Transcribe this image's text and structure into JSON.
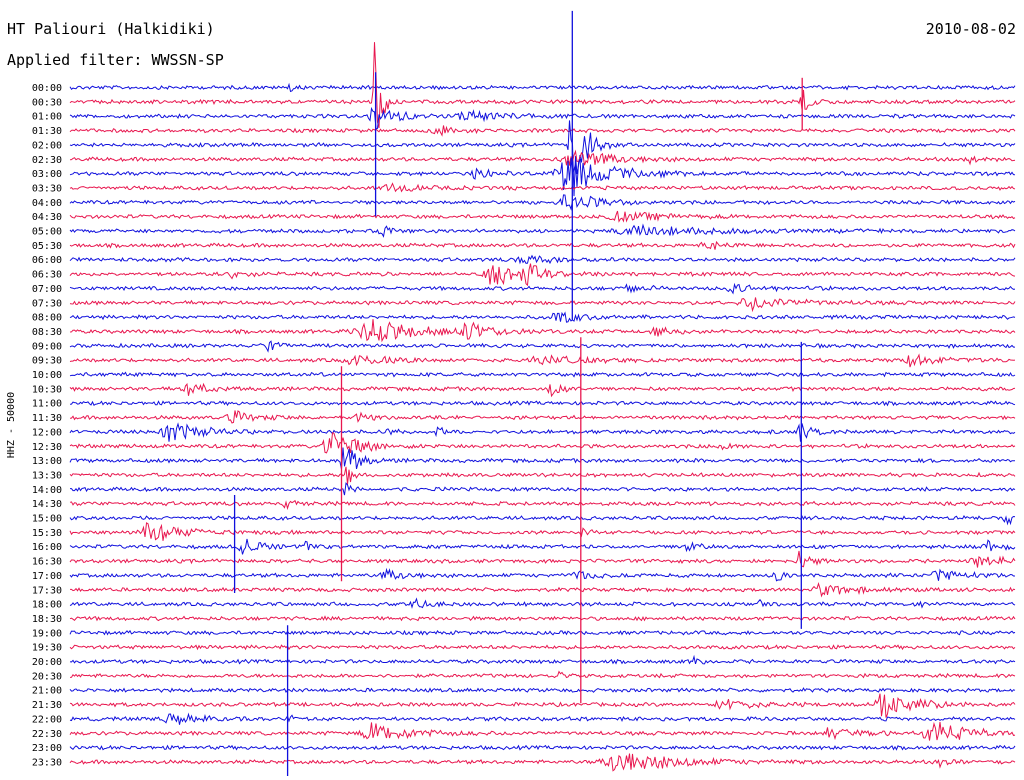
{
  "header": {
    "station": "HT Paliouri (Halkidiki)",
    "date": "2010-08-02",
    "filter": "Applied filter: WWSSN-SP"
  },
  "chart_data": {
    "type": "line",
    "ylabel": "HHZ - 50000",
    "colors": [
      "#1010dd",
      "#e8174f"
    ],
    "rows": [
      "00:00",
      "00:30",
      "01:00",
      "01:30",
      "02:00",
      "02:30",
      "03:00",
      "03:30",
      "04:00",
      "04:30",
      "05:00",
      "05:30",
      "06:00",
      "06:30",
      "07:00",
      "07:30",
      "08:00",
      "08:30",
      "09:00",
      "09:30",
      "10:00",
      "10:30",
      "11:00",
      "11:30",
      "12:00",
      "12:30",
      "13:00",
      "13:30",
      "14:00",
      "14:30",
      "15:00",
      "15:30",
      "16:00",
      "16:30",
      "17:00",
      "17:30",
      "18:00",
      "18:30",
      "19:00",
      "19:30",
      "20:00",
      "20:30",
      "21:00",
      "21:30",
      "22:00",
      "22:30",
      "23:00",
      "23:30"
    ],
    "events": [
      {
        "row": 0,
        "x": 0.232,
        "amp": 5,
        "dur": 0.004
      },
      {
        "row": 1,
        "x": 0.322,
        "amp": 70,
        "dur": 0.006
      },
      {
        "row": 1,
        "x": 0.774,
        "amp": 20,
        "dur": 0.006
      },
      {
        "row": 2,
        "x": 0.322,
        "amp": 14,
        "dur": 0.02
      },
      {
        "row": 2,
        "x": 0.42,
        "amp": 5,
        "dur": 0.04
      },
      {
        "row": 3,
        "x": 0.388,
        "amp": 6,
        "dur": 0.015
      },
      {
        "row": 4,
        "x": 0.531,
        "amp": 76,
        "dur": 0.012
      },
      {
        "row": 5,
        "x": 0.532,
        "amp": 10,
        "dur": 0.04
      },
      {
        "row": 5,
        "x": 0.95,
        "amp": 6,
        "dur": 0.006
      },
      {
        "row": 6,
        "x": 0.525,
        "amp": 22,
        "dur": 0.04
      },
      {
        "row": 6,
        "x": 0.43,
        "amp": 6,
        "dur": 0.02
      },
      {
        "row": 7,
        "x": 0.338,
        "amp": 6,
        "dur": 0.02
      },
      {
        "row": 8,
        "x": 0.525,
        "amp": 10,
        "dur": 0.03
      },
      {
        "row": 9,
        "x": 0.58,
        "amp": 5,
        "dur": 0.04
      },
      {
        "row": 10,
        "x": 0.33,
        "amp": 7,
        "dur": 0.01
      },
      {
        "row": 10,
        "x": 0.6,
        "amp": 5,
        "dur": 0.08
      },
      {
        "row": 11,
        "x": 0.672,
        "amp": 6,
        "dur": 0.015
      },
      {
        "row": 12,
        "x": 0.48,
        "amp": 6,
        "dur": 0.02
      },
      {
        "row": 13,
        "x": 0.448,
        "amp": 14,
        "dur": 0.03
      },
      {
        "row": 13,
        "x": 0.482,
        "amp": 10,
        "dur": 0.012
      },
      {
        "row": 13,
        "x": 0.17,
        "amp": 4,
        "dur": 0.015
      },
      {
        "row": 14,
        "x": 0.59,
        "amp": 5,
        "dur": 0.015
      },
      {
        "row": 14,
        "x": 0.7,
        "amp": 4,
        "dur": 0.03
      },
      {
        "row": 15,
        "x": 0.72,
        "amp": 7,
        "dur": 0.04
      },
      {
        "row": 16,
        "x": 0.515,
        "amp": 8,
        "dur": 0.02
      },
      {
        "row": 17,
        "x": 0.318,
        "amp": 14,
        "dur": 0.045
      },
      {
        "row": 17,
        "x": 0.42,
        "amp": 9,
        "dur": 0.02
      },
      {
        "row": 17,
        "x": 0.62,
        "amp": 5,
        "dur": 0.02
      },
      {
        "row": 18,
        "x": 0.205,
        "amp": 7,
        "dur": 0.012
      },
      {
        "row": 19,
        "x": 0.3,
        "amp": 7,
        "dur": 0.03
      },
      {
        "row": 19,
        "x": 0.5,
        "amp": 6,
        "dur": 0.04
      },
      {
        "row": 19,
        "x": 0.89,
        "amp": 7,
        "dur": 0.025
      },
      {
        "row": 21,
        "x": 0.125,
        "amp": 10,
        "dur": 0.015
      },
      {
        "row": 21,
        "x": 0.508,
        "amp": 14,
        "dur": 0.01
      },
      {
        "row": 23,
        "x": 0.172,
        "amp": 7,
        "dur": 0.02
      },
      {
        "row": 23,
        "x": 0.305,
        "amp": 5,
        "dur": 0.01
      },
      {
        "row": 24,
        "x": 0.105,
        "amp": 12,
        "dur": 0.03
      },
      {
        "row": 24,
        "x": 0.336,
        "amp": 8,
        "dur": 0.006
      },
      {
        "row": 24,
        "x": 0.388,
        "amp": 10,
        "dur": 0.004
      },
      {
        "row": 24,
        "x": 0.772,
        "amp": 14,
        "dur": 0.01
      },
      {
        "row": 25,
        "x": 0.275,
        "amp": 18,
        "dur": 0.025
      },
      {
        "row": 25,
        "x": 0.687,
        "amp": 12,
        "dur": 0.006
      },
      {
        "row": 26,
        "x": 0.29,
        "amp": 24,
        "dur": 0.012
      },
      {
        "row": 27,
        "x": 0.292,
        "amp": 14,
        "dur": 0.006
      },
      {
        "row": 28,
        "x": 0.291,
        "amp": 10,
        "dur": 0.005
      },
      {
        "row": 29,
        "x": 0.228,
        "amp": 4,
        "dur": 0.012
      },
      {
        "row": 30,
        "x": 0.99,
        "amp": 8,
        "dur": 0.008
      },
      {
        "row": 31,
        "x": 0.085,
        "amp": 12,
        "dur": 0.03
      },
      {
        "row": 31,
        "x": 0.54,
        "amp": 10,
        "dur": 0.006
      },
      {
        "row": 32,
        "x": 0.183,
        "amp": 12,
        "dur": 0.015
      },
      {
        "row": 32,
        "x": 0.248,
        "amp": 9,
        "dur": 0.006
      },
      {
        "row": 32,
        "x": 0.652,
        "amp": 6,
        "dur": 0.01
      },
      {
        "row": 32,
        "x": 0.97,
        "amp": 5,
        "dur": 0.02
      },
      {
        "row": 33,
        "x": 0.77,
        "amp": 14,
        "dur": 0.01
      },
      {
        "row": 33,
        "x": 0.96,
        "amp": 6,
        "dur": 0.03
      },
      {
        "row": 34,
        "x": 0.335,
        "amp": 6,
        "dur": 0.02
      },
      {
        "row": 34,
        "x": 0.535,
        "amp": 5,
        "dur": 0.02
      },
      {
        "row": 34,
        "x": 0.745,
        "amp": 14,
        "dur": 0.005
      },
      {
        "row": 34,
        "x": 0.915,
        "amp": 7,
        "dur": 0.025
      },
      {
        "row": 35,
        "x": 0.795,
        "amp": 7,
        "dur": 0.03
      },
      {
        "row": 36,
        "x": 0.362,
        "amp": 5,
        "dur": 0.015
      },
      {
        "row": 36,
        "x": 0.727,
        "amp": 5,
        "dur": 0.004
      },
      {
        "row": 36,
        "x": 0.898,
        "amp": 4,
        "dur": 0.004
      },
      {
        "row": 40,
        "x": 0.66,
        "amp": 6,
        "dur": 0.005
      },
      {
        "row": 41,
        "x": 0.516,
        "amp": 10,
        "dur": 0.004
      },
      {
        "row": 43,
        "x": 0.69,
        "amp": 6,
        "dur": 0.03
      },
      {
        "row": 43,
        "x": 0.86,
        "amp": 14,
        "dur": 0.03
      },
      {
        "row": 44,
        "x": 0.107,
        "amp": 8,
        "dur": 0.025
      },
      {
        "row": 44,
        "x": 0.23,
        "amp": 10,
        "dur": 0.004
      },
      {
        "row": 45,
        "x": 0.32,
        "amp": 12,
        "dur": 0.035
      },
      {
        "row": 45,
        "x": 0.805,
        "amp": 8,
        "dur": 0.025
      },
      {
        "row": 45,
        "x": 0.91,
        "amp": 16,
        "dur": 0.03
      },
      {
        "row": 47,
        "x": 0.58,
        "amp": 14,
        "dur": 0.05
      },
      {
        "row": 47,
        "x": 0.92,
        "amp": 6,
        "dur": 0.006
      }
    ],
    "spikes": [
      {
        "row": 2,
        "x": 0.323,
        "up": 44,
        "down": 100,
        "color": "#1010dd"
      },
      {
        "row": 1,
        "x": 0.774,
        "up": 24,
        "down": 28,
        "color": "#e8174f"
      },
      {
        "row": 4,
        "x": 0.531,
        "up": 134,
        "down": 175,
        "color": "#1010dd"
      },
      {
        "row": 25,
        "x": 0.287,
        "up": 80,
        "down": 135,
        "color": "#e8174f"
      },
      {
        "row": 25,
        "x": 0.54,
        "up": 109,
        "down": 257,
        "color": "#e8174f"
      },
      {
        "row": 24,
        "x": 0.773,
        "up": 90,
        "down": 197,
        "color": "#1010dd"
      },
      {
        "row": 33,
        "x": 0.174,
        "up": 66,
        "down": 32,
        "color": "#1010dd"
      },
      {
        "row": 45,
        "x": 0.23,
        "up": 108,
        "down": 48,
        "color": "#1010dd"
      }
    ]
  }
}
